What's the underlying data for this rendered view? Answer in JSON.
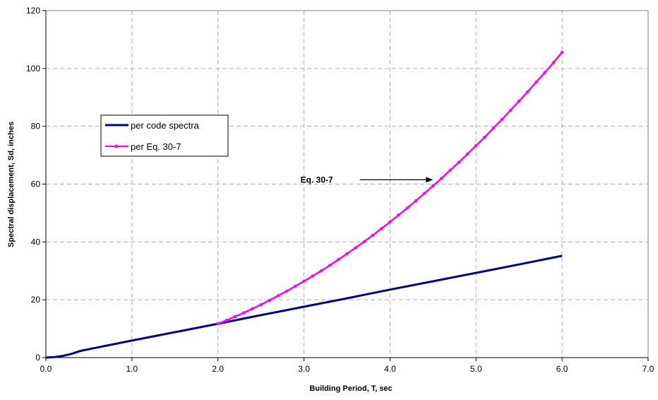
{
  "chart_data": {
    "type": "line",
    "xlabel": "Building Period, T, sec",
    "ylabel": "Spectral displacement, Sd, inches",
    "xlim": [
      0,
      7
    ],
    "ylim": [
      0,
      120
    ],
    "xticks": [
      "0.0",
      "1.0",
      "2.0",
      "3.0",
      "4.0",
      "5.0",
      "6.0",
      "7.0"
    ],
    "yticks": [
      "0",
      "20",
      "40",
      "60",
      "80",
      "100",
      "120"
    ],
    "grid": true,
    "legend_position": "left",
    "series": [
      {
        "name": "per code spectra",
        "color": "#000080",
        "markers": false,
        "x": [
          0.0,
          0.1,
          0.2,
          0.3,
          0.4,
          0.5,
          1.0,
          1.5,
          2.0,
          2.5,
          3.0,
          3.5,
          4.0,
          4.5,
          5.0,
          5.5,
          6.0
        ],
        "y": [
          0.0,
          0.2,
          0.6,
          1.3,
          2.3,
          2.9,
          5.9,
          8.8,
          11.7,
          14.7,
          17.6,
          20.5,
          23.5,
          26.4,
          29.3,
          32.2,
          35.2
        ]
      },
      {
        "name": "per Eq. 30-7",
        "color": "#FF00FF",
        "markers": true,
        "x": [
          2.0,
          2.1,
          2.2,
          2.3,
          2.4,
          2.5,
          2.6,
          2.7,
          2.8,
          2.9,
          3.0,
          3.1,
          3.2,
          3.3,
          3.4,
          3.5,
          3.6,
          3.7,
          3.8,
          3.9,
          4.0,
          4.1,
          4.2,
          4.3,
          4.4,
          4.5,
          4.6,
          4.7,
          4.8,
          4.9,
          5.0,
          5.1,
          5.2,
          5.3,
          5.4,
          5.5,
          5.6,
          5.7,
          5.8,
          5.9,
          6.0
        ],
        "y": [
          11.7,
          12.9,
          14.2,
          15.5,
          16.9,
          18.3,
          19.8,
          21.4,
          23.0,
          24.7,
          26.4,
          28.2,
          30.0,
          31.9,
          33.9,
          35.9,
          38.0,
          40.1,
          42.3,
          44.6,
          46.9,
          49.3,
          51.7,
          54.2,
          56.8,
          59.4,
          62.0,
          64.8,
          67.5,
          70.4,
          73.3,
          76.2,
          79.3,
          82.3,
          85.5,
          88.7,
          91.9,
          95.3,
          98.6,
          102.0,
          105.6
        ]
      }
    ],
    "annotations": [
      {
        "text": "Eq. 30-7",
        "x": 3.6,
        "y": 61.5,
        "arrow_to": [
          4.5,
          61.5
        ]
      }
    ]
  }
}
